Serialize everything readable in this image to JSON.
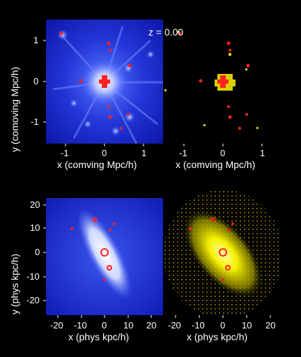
{
  "redshift_label": "z = 0.00",
  "top": {
    "xlabel": "x (comving Mpc/h)",
    "ylabel": "y (comoving Mpc/h)",
    "xticks": [
      "-1",
      "0",
      "1"
    ],
    "yticks": [
      "1",
      "0",
      "-1"
    ]
  },
  "bottom": {
    "xlabel": "x (phys kpc/h)",
    "ylabel": "y (phys kpc/h)",
    "xticks": [
      "-20",
      "-10",
      "0",
      "10",
      "20"
    ],
    "yticks": [
      "20",
      "10",
      "0",
      "-10",
      "-20"
    ]
  },
  "colors": {
    "background": "#000000",
    "dark_matter_blue": "#1b2cd8",
    "halo_white": "#e8ecff",
    "gas_yellow": "#f4f000",
    "marker_red": "#ff2020"
  }
}
